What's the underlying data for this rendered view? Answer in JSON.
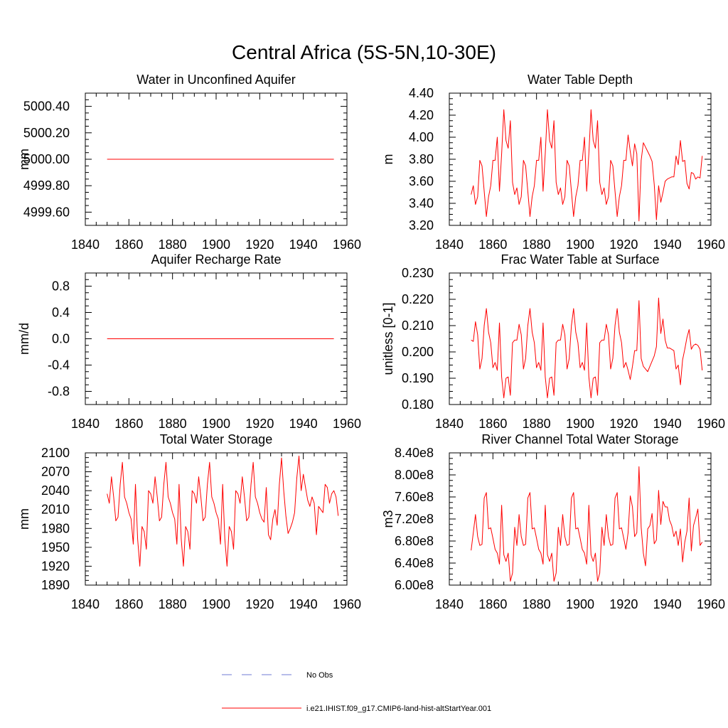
{
  "figure": {
    "title": "Central Africa (5S-5N,10-30E)"
  },
  "legend": {
    "placement": "bottom-center",
    "entries": [
      {
        "label": "No Obs",
        "color": "#6f7bd6",
        "style": "dashed"
      },
      {
        "label": "i.e21.IHIST.f09_g17.CMIP6-land-hist-altStartYear.001",
        "color": "#ff0000",
        "style": "solid"
      }
    ]
  },
  "chart_data": [
    {
      "type": "line",
      "title": "Water in Unconfined Aquifer",
      "xlabel": "",
      "ylabel": "mm",
      "xlim": [
        1840,
        1960
      ],
      "ylim": [
        4999.5,
        5000.5
      ],
      "xticks": [
        "1840",
        "1860",
        "1880",
        "1900",
        "1920",
        "1940",
        "1960"
      ],
      "yticks": [
        "4999.60",
        "4999.80",
        "5000.00",
        "5000.20",
        "5000.40"
      ],
      "grid": false,
      "series": [
        {
          "color": "#ff0000",
          "x_start": 1850,
          "values": [
            5000,
            5000,
            5000,
            5000,
            5000,
            5000,
            5000,
            5000,
            5000,
            5000,
            5000,
            5000,
            5000,
            5000,
            5000,
            5000,
            5000,
            5000,
            5000,
            5000,
            5000,
            5000,
            5000,
            5000,
            5000,
            5000,
            5000,
            5000,
            5000,
            5000,
            5000,
            5000,
            5000,
            5000,
            5000,
            5000,
            5000,
            5000,
            5000,
            5000,
            5000,
            5000,
            5000,
            5000,
            5000,
            5000,
            5000,
            5000,
            5000,
            5000,
            5000,
            5000,
            5000,
            5000,
            5000,
            5000,
            5000,
            5000,
            5000,
            5000,
            5000,
            5000,
            5000,
            5000,
            5000,
            5000,
            5000,
            5000,
            5000,
            5000,
            5000,
            5000,
            5000,
            5000,
            5000,
            5000,
            5000,
            5000,
            5000,
            5000,
            5000,
            5000,
            5000,
            5000,
            5000,
            5000,
            5000,
            5000,
            5000,
            5000,
            5000,
            5000,
            5000,
            5000,
            5000,
            5000,
            5000,
            5000,
            5000,
            5000,
            5000,
            5000,
            5000,
            5000,
            5000
          ]
        }
      ]
    },
    {
      "type": "line",
      "title": "Water Table Depth",
      "xlabel": "",
      "ylabel": "m",
      "xlim": [
        1840,
        1960
      ],
      "ylim": [
        3.2,
        4.4
      ],
      "xticks": [
        "1840",
        "1860",
        "1880",
        "1900",
        "1920",
        "1940",
        "1960"
      ],
      "yticks": [
        "3.20",
        "3.40",
        "3.60",
        "3.80",
        "4.00",
        "4.20",
        "4.40"
      ],
      "grid": false,
      "series": [
        {
          "color": "#ff0000",
          "x_start": 1850,
          "values": [
            3.48,
            3.56,
            3.39,
            3.46,
            3.79,
            3.74,
            3.51,
            3.28,
            3.46,
            3.56,
            3.79,
            3.79,
            4.0,
            3.51,
            3.85,
            4.25,
            3.97,
            3.9,
            4.15,
            3.59,
            3.48,
            3.54,
            3.39,
            3.46,
            3.79,
            3.74,
            3.51,
            3.28,
            3.46,
            3.56,
            3.79,
            3.79,
            4.0,
            3.51,
            3.85,
            4.25,
            3.97,
            3.9,
            4.15,
            3.59,
            3.48,
            3.54,
            3.39,
            3.46,
            3.79,
            3.74,
            3.51,
            3.28,
            3.46,
            3.56,
            3.79,
            3.79,
            4.0,
            3.51,
            3.85,
            4.25,
            3.97,
            3.9,
            4.15,
            3.59,
            3.48,
            3.54,
            3.39,
            3.46,
            3.79,
            3.74,
            3.51,
            3.28,
            3.46,
            3.56,
            3.79,
            3.79,
            4.02,
            3.87,
            3.74,
            3.94,
            3.85,
            3.24,
            3.79,
            3.95,
            3.91,
            3.87,
            3.83,
            3.78,
            3.57,
            3.25,
            3.56,
            3.41,
            3.5,
            3.6,
            3.62,
            3.63,
            3.64,
            3.64,
            3.83,
            3.75,
            3.97,
            3.78,
            3.79,
            3.58,
            3.53,
            3.68,
            3.67,
            3.62,
            3.64,
            3.63,
            3.83
          ]
        }
      ]
    },
    {
      "type": "line",
      "title": "Aquifer Recharge Rate",
      "xlabel": "",
      "ylabel": "mm/d",
      "xlim": [
        1840,
        1960
      ],
      "ylim": [
        -1.0,
        1.0
      ],
      "xticks": [
        "1840",
        "1860",
        "1880",
        "1900",
        "1920",
        "1940",
        "1960"
      ],
      "yticks": [
        "-0.8",
        "-0.4",
        "0.0",
        "0.4",
        "0.8"
      ],
      "grid": false,
      "series": [
        {
          "color": "#ff0000",
          "x_start": 1850,
          "values": [
            0,
            0,
            0,
            0,
            0,
            0,
            0,
            0,
            0,
            0,
            0,
            0,
            0,
            0,
            0,
            0,
            0,
            0,
            0,
            0,
            0,
            0,
            0,
            0,
            0,
            0,
            0,
            0,
            0,
            0,
            0,
            0,
            0,
            0,
            0,
            0,
            0,
            0,
            0,
            0,
            0,
            0,
            0,
            0,
            0,
            0,
            0,
            0,
            0,
            0,
            0,
            0,
            0,
            0,
            0,
            0,
            0,
            0,
            0,
            0,
            0,
            0,
            0,
            0,
            0,
            0,
            0,
            0,
            0,
            0,
            0,
            0,
            0,
            0,
            0,
            0,
            0,
            0,
            0,
            0,
            0,
            0,
            0,
            0,
            0,
            0,
            0,
            0,
            0,
            0,
            0,
            0,
            0,
            0,
            0,
            0,
            0,
            0,
            0,
            0,
            0,
            0,
            0,
            0,
            0
          ]
        }
      ]
    },
    {
      "type": "line",
      "title": "Frac Water Table at Surface",
      "xlabel": "",
      "ylabel": "unitless [0-1]",
      "xlim": [
        1840,
        1960
      ],
      "ylim": [
        0.18,
        0.23
      ],
      "xticks": [
        "1840",
        "1860",
        "1880",
        "1900",
        "1920",
        "1940",
        "1960"
      ],
      "yticks": [
        "0.180",
        "0.190",
        "0.200",
        "0.210",
        "0.220",
        "0.230"
      ],
      "grid": false,
      "series": [
        {
          "color": "#ff0000",
          "x_start": 1850,
          "values": [
            0.2045,
            0.204,
            0.2115,
            0.2065,
            0.1935,
            0.1975,
            0.21,
            0.2165,
            0.2075,
            0.2035,
            0.194,
            0.196,
            0.193,
            0.211,
            0.1905,
            0.1825,
            0.19,
            0.1905,
            0.1835,
            0.2035,
            0.2045,
            0.2045,
            0.2105,
            0.2065,
            0.1935,
            0.1975,
            0.21,
            0.2165,
            0.2075,
            0.2035,
            0.194,
            0.196,
            0.193,
            0.211,
            0.1905,
            0.1825,
            0.19,
            0.1905,
            0.1835,
            0.2035,
            0.2045,
            0.2045,
            0.2105,
            0.2065,
            0.1935,
            0.1975,
            0.21,
            0.2165,
            0.2075,
            0.2035,
            0.194,
            0.196,
            0.193,
            0.211,
            0.1905,
            0.1825,
            0.19,
            0.1905,
            0.1835,
            0.2035,
            0.2045,
            0.2045,
            0.2105,
            0.2065,
            0.1935,
            0.1975,
            0.21,
            0.2165,
            0.2075,
            0.2035,
            0.194,
            0.196,
            0.193,
            0.1895,
            0.1945,
            0.2005,
            0.2005,
            0.2195,
            0.1975,
            0.1945,
            0.1935,
            0.1925,
            0.1945,
            0.1965,
            0.1985,
            0.202,
            0.2205,
            0.207,
            0.2125,
            0.2045,
            0.2015,
            0.2015,
            0.201,
            0.2005,
            0.1935,
            0.195,
            0.1875,
            0.197,
            0.201,
            0.2055,
            0.2085,
            0.201,
            0.2025,
            0.203,
            0.2025,
            0.201,
            0.193
          ]
        }
      ]
    },
    {
      "type": "line",
      "title": "Total Water Storage",
      "xlabel": "",
      "ylabel": "mm",
      "xlim": [
        1840,
        1960
      ],
      "ylim": [
        1890,
        2100
      ],
      "xticks": [
        "1840",
        "1860",
        "1880",
        "1900",
        "1920",
        "1940",
        "1960"
      ],
      "yticks": [
        "1890",
        "1920",
        "1950",
        "1980",
        "2010",
        "2040",
        "2070",
        "2100"
      ],
      "grid": false,
      "series": [
        {
          "color": "#ff0000",
          "x_start": 1850,
          "values": [
            2035,
            2020,
            2062,
            2030,
            1992,
            1998,
            2050,
            2085,
            2030,
            2020,
            2005,
            1995,
            1955,
            2050,
            1963,
            1920,
            1983,
            1975,
            1947,
            2040,
            2035,
            2020,
            2062,
            2030,
            1992,
            1998,
            2050,
            2085,
            2030,
            2020,
            2005,
            1995,
            1955,
            2050,
            1963,
            1920,
            1983,
            1975,
            1947,
            2040,
            2035,
            2020,
            2062,
            2030,
            1992,
            1998,
            2050,
            2085,
            2030,
            2020,
            2005,
            1995,
            1955,
            2050,
            1963,
            1920,
            1983,
            1975,
            1947,
            2040,
            2035,
            2020,
            2062,
            2030,
            1992,
            1998,
            2050,
            2085,
            2030,
            2020,
            2005,
            1995,
            1990,
            2045,
            1970,
            1962,
            1995,
            2010,
            1985,
            2050,
            2092,
            2040,
            2000,
            1972,
            1980,
            1990,
            2005,
            2060,
            2095,
            2040,
            2066,
            2045,
            2025,
            2015,
            2030,
            2020,
            1970,
            2015,
            2010,
            2005,
            2050,
            2045,
            2020,
            2035,
            2040,
            2030,
            2000
          ]
        }
      ]
    },
    {
      "type": "line",
      "title": "River Channel Total Water Storage",
      "xlabel": "",
      "ylabel": "m3",
      "xlim": [
        1840,
        1960
      ],
      "ylim": [
        6.0,
        8.4
      ],
      "y_exponent": "e8",
      "xticks": [
        "1840",
        "1860",
        "1880",
        "1900",
        "1920",
        "1940",
        "1960"
      ],
      "yticks": [
        "6.00e8",
        "6.40e8",
        "6.80e8",
        "7.20e8",
        "7.60e8",
        "8.00e8",
        "8.40e8"
      ],
      "grid": false,
      "series": [
        {
          "color": "#ff0000",
          "x_start": 1850,
          "values": [
            6.63,
            6.95,
            7.28,
            6.88,
            6.72,
            6.74,
            7.58,
            7.68,
            7.02,
            7.04,
            6.85,
            6.65,
            6.58,
            6.38,
            7.45,
            6.55,
            6.43,
            6.58,
            6.07,
            6.22,
            7.05,
            6.72,
            7.28,
            6.88,
            6.72,
            6.74,
            7.58,
            7.68,
            7.02,
            7.04,
            6.85,
            6.65,
            6.58,
            6.38,
            7.45,
            6.55,
            6.43,
            6.58,
            6.07,
            6.22,
            7.05,
            6.72,
            7.28,
            6.88,
            6.72,
            6.74,
            7.58,
            7.68,
            7.02,
            7.04,
            6.85,
            6.65,
            6.58,
            6.38,
            7.45,
            6.55,
            6.43,
            6.58,
            6.07,
            6.22,
            7.05,
            6.72,
            7.28,
            6.88,
            6.72,
            6.74,
            7.58,
            7.68,
            7.02,
            7.04,
            6.85,
            6.65,
            6.95,
            7.62,
            7.42,
            6.88,
            6.95,
            8.15,
            7.05,
            6.58,
            6.35,
            7.02,
            7.08,
            7.3,
            6.75,
            6.82,
            7.72,
            7.1,
            7.52,
            7.42,
            7.42,
            7.18,
            7.08,
            6.88,
            6.98,
            6.72,
            7.02,
            6.42,
            6.78,
            6.98,
            7.58,
            6.62,
            7.08,
            7.22,
            7.38,
            6.72,
            6.78
          ]
        }
      ]
    }
  ]
}
